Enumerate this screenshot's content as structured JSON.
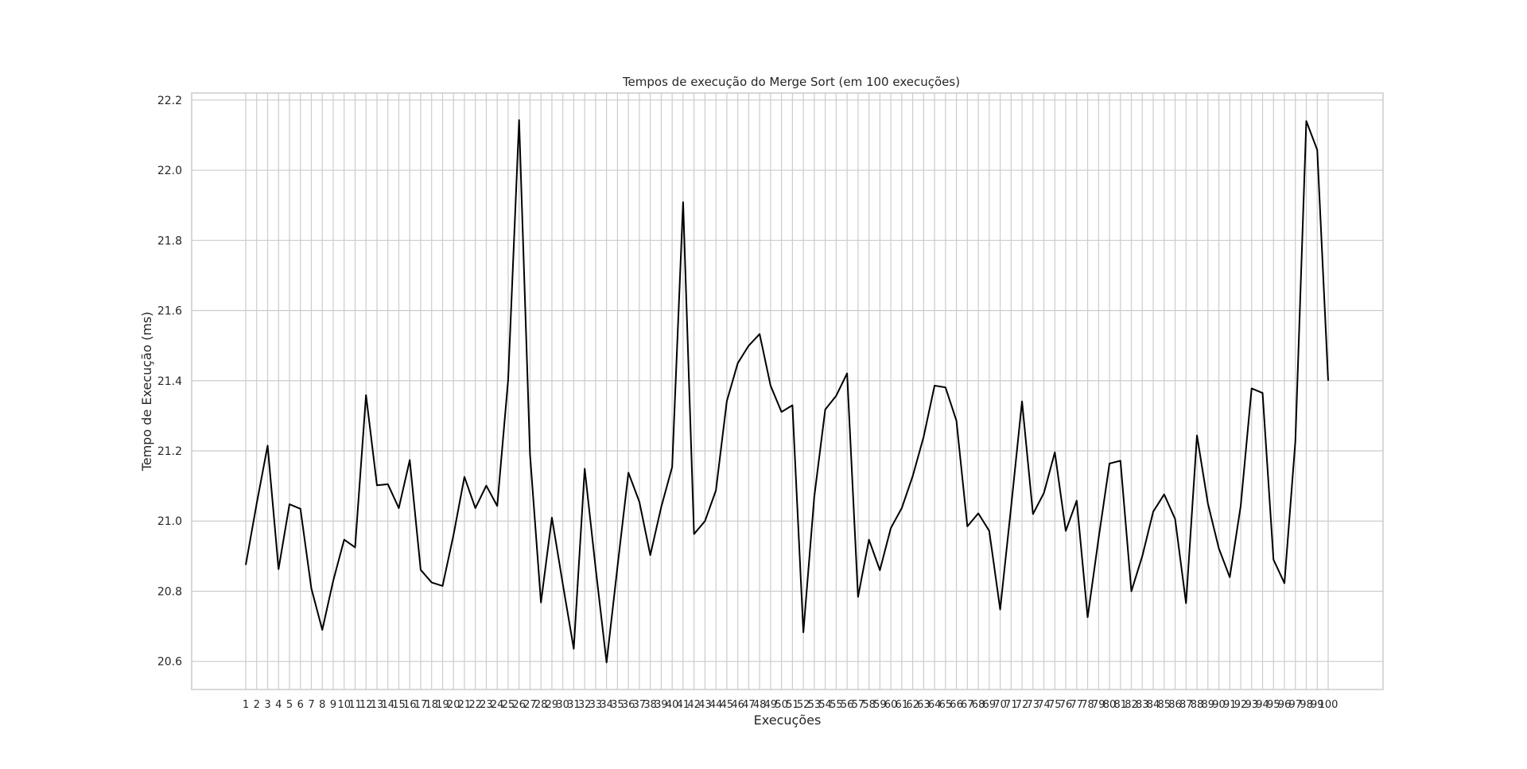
{
  "chart_data": {
    "type": "line",
    "title": "Tempos de execução do Merge Sort (em 100 execuções)",
    "xlabel": "Execuções",
    "ylabel": "Tempo de Execução (ms)",
    "ylim": [
      20.52,
      22.22
    ],
    "yticks": [
      "20.6",
      "20.8",
      "21.0",
      "21.2",
      "21.4",
      "21.6",
      "21.8",
      "22.0",
      "22.2"
    ],
    "grid": true,
    "line_color": "#000000",
    "grid_color": "#cccccc",
    "x": [
      1,
      2,
      3,
      4,
      5,
      6,
      7,
      8,
      9,
      10,
      11,
      12,
      13,
      14,
      15,
      16,
      17,
      18,
      19,
      20,
      21,
      22,
      23,
      24,
      25,
      26,
      27,
      28,
      29,
      30,
      31,
      32,
      33,
      34,
      35,
      36,
      37,
      38,
      39,
      40,
      41,
      42,
      43,
      44,
      45,
      46,
      47,
      48,
      49,
      50,
      51,
      52,
      53,
      54,
      55,
      56,
      57,
      58,
      59,
      60,
      61,
      62,
      63,
      64,
      65,
      66,
      67,
      68,
      69,
      70,
      71,
      72,
      73,
      74,
      75,
      76,
      77,
      78,
      79,
      80,
      81,
      82,
      83,
      84,
      85,
      86,
      87,
      88,
      89,
      90,
      91,
      92,
      93,
      94,
      95,
      96,
      97,
      98,
      99,
      100
    ],
    "series": [
      {
        "values": [
          20.875,
          21.05,
          21.215,
          20.863,
          21.048,
          21.035,
          20.808,
          20.69,
          20.83,
          20.947,
          20.925,
          21.359,
          21.102,
          21.105,
          21.037,
          21.174,
          20.861,
          20.825,
          20.815,
          20.96,
          21.126,
          21.037,
          21.101,
          21.043,
          21.403,
          22.143,
          21.19,
          20.768,
          21.01,
          20.82,
          20.636,
          21.149,
          20.866,
          20.597,
          20.87,
          21.138,
          21.055,
          20.903,
          21.04,
          21.154,
          21.909,
          20.963,
          21.0,
          21.087,
          21.342,
          21.45,
          21.5,
          21.533,
          21.386,
          21.311,
          21.33,
          20.683,
          21.07,
          21.318,
          21.357,
          21.421,
          20.784,
          20.947,
          20.86,
          20.98,
          21.037,
          21.128,
          21.24,
          21.386,
          21.381,
          21.286,
          20.985,
          21.022,
          20.972,
          20.748,
          21.04,
          21.341,
          21.02,
          21.08,
          21.196,
          20.972,
          21.058,
          20.726,
          20.95,
          21.164,
          21.172,
          20.8,
          20.9,
          21.027,
          21.076,
          21.006,
          20.766,
          21.244,
          21.05,
          20.922,
          20.84,
          21.043,
          21.378,
          21.365,
          20.89,
          20.823,
          21.228,
          22.14,
          22.058,
          21.4
        ]
      }
    ]
  }
}
